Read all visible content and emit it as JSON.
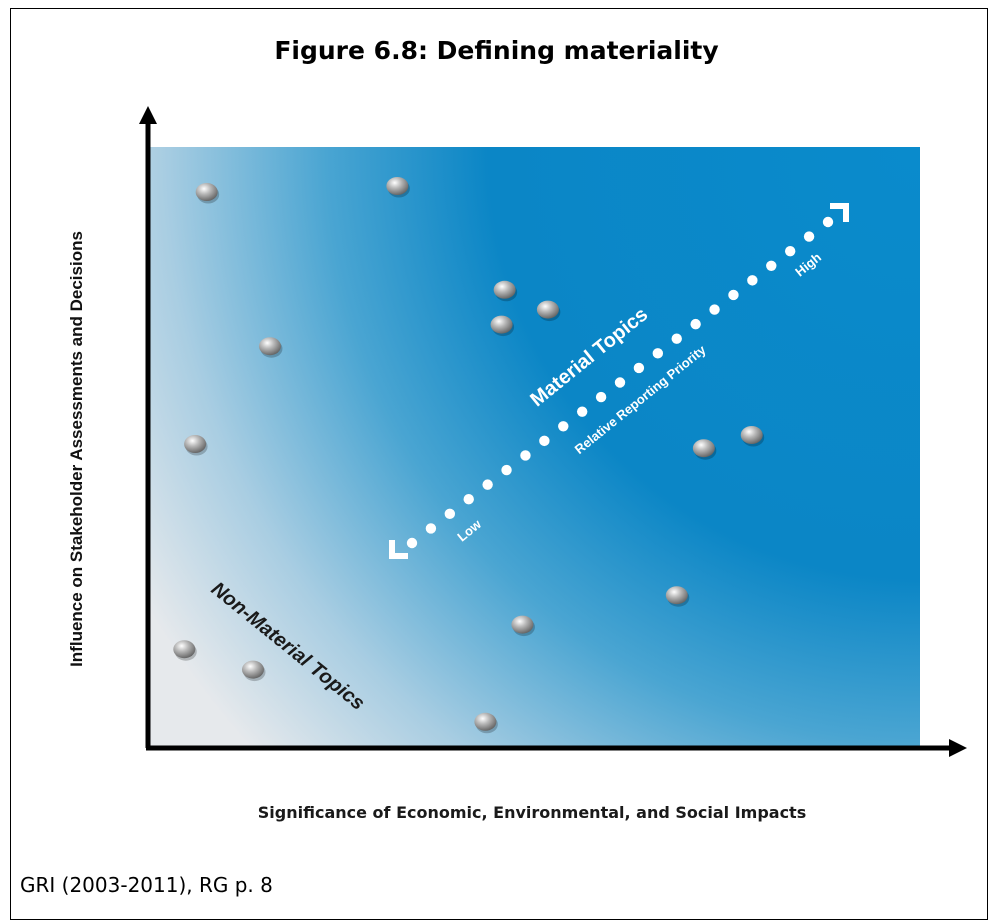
{
  "figure": {
    "title": "Figure 6.8: Defining materiality",
    "source": "GRI (2003-2011), RG p. 8"
  },
  "colors": {
    "background_high": "#0a8bcc",
    "background_low": "#e6e9ec",
    "axis": "#000000",
    "dot": "#9a9a9a",
    "arrow": "#ffffff"
  },
  "chart_data": {
    "type": "scatter",
    "title": "Figure 6.8: Defining materiality",
    "xlabel": "Significance of Economic, Environmental, and Social Impacts",
    "ylabel": "Influence on Stakeholder Assessments and Decisions",
    "xlim": [
      0,
      100
    ],
    "ylim": [
      0,
      100
    ],
    "grid": false,
    "points": [
      {
        "x": 7.6,
        "y": 92.5
      },
      {
        "x": 32.3,
        "y": 93.5
      },
      {
        "x": 46.2,
        "y": 76.2
      },
      {
        "x": 51.8,
        "y": 72.9
      },
      {
        "x": 45.8,
        "y": 70.4
      },
      {
        "x": 15.8,
        "y": 66.8
      },
      {
        "x": 6.1,
        "y": 50.5
      },
      {
        "x": 72.0,
        "y": 49.8
      },
      {
        "x": 78.2,
        "y": 52.0
      },
      {
        "x": 68.5,
        "y": 25.3
      },
      {
        "x": 48.5,
        "y": 20.4
      },
      {
        "x": 4.7,
        "y": 16.3
      },
      {
        "x": 13.6,
        "y": 12.9
      },
      {
        "x": 43.7,
        "y": 4.2
      }
    ],
    "annotations": {
      "material": "Material Topics",
      "non_material": "Non-Material Topics",
      "priority": "Relative Reporting Priority",
      "low": "Low",
      "high": "High"
    }
  }
}
